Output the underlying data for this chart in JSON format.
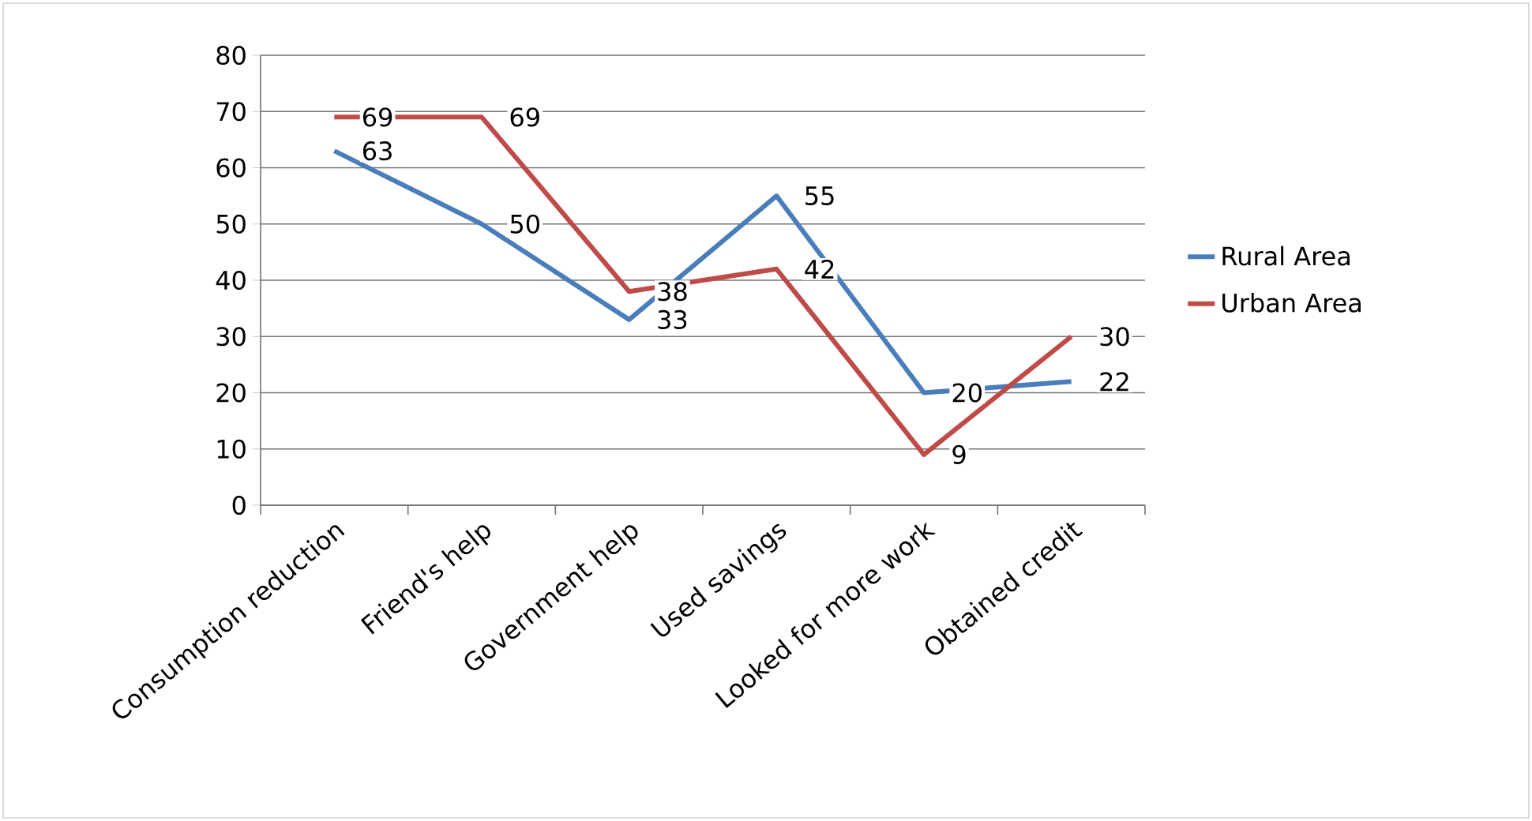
{
  "chart_data": {
    "type": "line",
    "categories": [
      "Consumption reduction",
      "Friend's help",
      "Government help",
      "Used savings",
      "Looked for more work",
      "Obtained credit"
    ],
    "series": [
      {
        "name": "Rural Area",
        "color": "#4a7ebb",
        "values": [
          63,
          50,
          33,
          55,
          20,
          22
        ]
      },
      {
        "name": "Urban Area",
        "color": "#be4b48",
        "values": [
          69,
          69,
          38,
          42,
          9,
          30
        ]
      }
    ],
    "ylim": [
      0,
      80
    ],
    "yticks": [
      0,
      10,
      20,
      30,
      40,
      50,
      60,
      70,
      80
    ],
    "grid": "y",
    "legend": "right",
    "marker": "none",
    "line_style": "solid",
    "data_labels": true
  }
}
